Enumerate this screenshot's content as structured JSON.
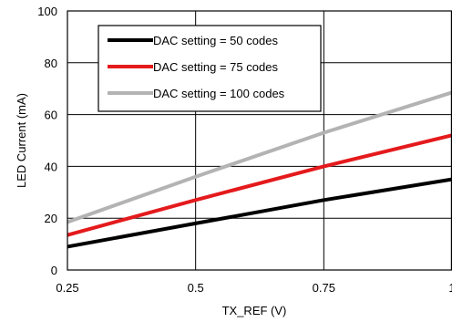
{
  "chart_data": {
    "type": "line",
    "title": "",
    "xlabel": "TX_REF (V)",
    "ylabel": "LED Current  (mA)",
    "xlim": [
      0.25,
      1.0
    ],
    "ylim": [
      0,
      100
    ],
    "xticks": [
      0.25,
      0.5,
      0.75,
      1.0
    ],
    "xtick_labels": [
      "0.25",
      "0.5",
      "0.75",
      "1"
    ],
    "yticks": [
      0,
      20,
      40,
      60,
      80,
      100
    ],
    "ytick_labels": [
      "0",
      "20",
      "40",
      "60",
      "80",
      "100"
    ],
    "grid": true,
    "legend_position": "top-left",
    "series": [
      {
        "name": "DAC setting = 50 codes",
        "color": "#000000",
        "x": [
          0.25,
          0.5,
          0.75,
          1.0
        ],
        "y": [
          9.0,
          18.0,
          27.0,
          35.0
        ]
      },
      {
        "name": "DAC setting = 75 codes",
        "color": "#e41a1c",
        "x": [
          0.25,
          0.5,
          0.75,
          1.0
        ],
        "y": [
          13.5,
          27.0,
          40.0,
          52.0
        ]
      },
      {
        "name": "DAC setting = 100 codes",
        "color": "#b3b3b3",
        "x": [
          0.25,
          0.5,
          0.75,
          1.0
        ],
        "y": [
          18.5,
          36.0,
          53.0,
          68.5
        ]
      }
    ]
  }
}
